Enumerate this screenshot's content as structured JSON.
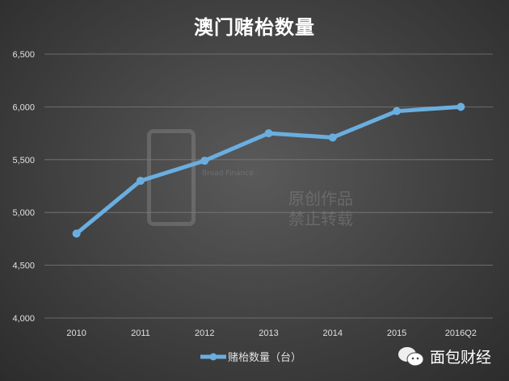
{
  "chart_data": {
    "type": "line",
    "title": "澳门赌枱数量",
    "categories": [
      "2010",
      "2011",
      "2012",
      "2013",
      "2014",
      "2015",
      "2016Q2"
    ],
    "series": [
      {
        "name": "赌枱数量（台）",
        "values": [
          4800,
          5300,
          5490,
          5750,
          5710,
          5960,
          6000
        ],
        "color": "#6aaee0"
      }
    ],
    "ylim": [
      4000,
      6500
    ],
    "yticks": [
      "4,000",
      "4,500",
      "5,000",
      "5,500",
      "6,000",
      "6,500"
    ],
    "grid": true,
    "legend": "bottom"
  },
  "watermark": {
    "logo": "面包财经",
    "en": "Bread Finance",
    "line1": "原创作品",
    "line2": "禁止转载"
  },
  "brand": {
    "icon": "wechat-icon",
    "name": "面包财经"
  }
}
